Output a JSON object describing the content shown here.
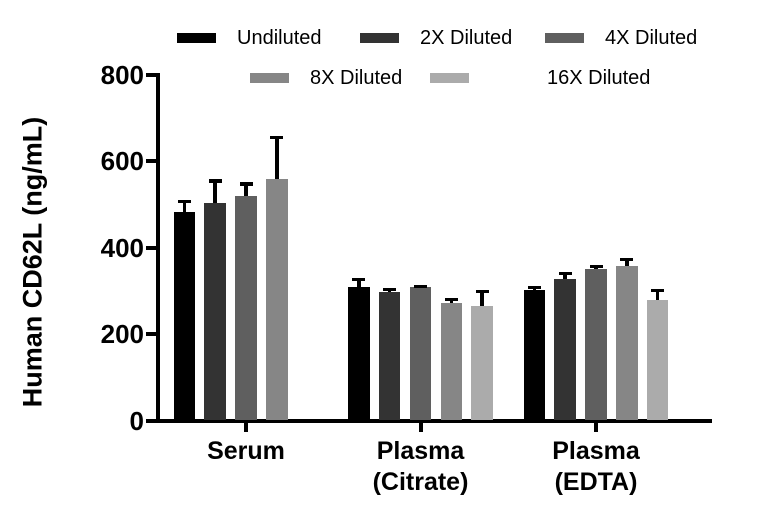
{
  "chart_data": {
    "type": "bar",
    "title": "",
    "ylabel": "Human CD62L (ng/mL)",
    "xlabel": "",
    "ylim": [
      0,
      800
    ],
    "yticks": [
      0,
      200,
      400,
      600,
      800
    ],
    "grid": false,
    "legend_position": "top",
    "error_bars": "upper SD, black",
    "categories": [
      "Serum",
      "Plasma\n(Citrate)",
      "Plasma\n(EDTA)"
    ],
    "series": [
      {
        "name": "Undiluted",
        "color": "#000000",
        "values": [
          483,
          310,
          303
        ],
        "errors": [
          26,
          18,
          7
        ]
      },
      {
        "name": "2X Diluted",
        "color": "#333333",
        "values": [
          504,
          298,
          328
        ],
        "errors": [
          53,
          7,
          14
        ]
      },
      {
        "name": "4X Diluted",
        "color": "#5f5f5f",
        "values": [
          520,
          308,
          351
        ],
        "errors": [
          30,
          4,
          7
        ]
      },
      {
        "name": "8X Diluted",
        "color": "#868686",
        "values": [
          560,
          271,
          358
        ],
        "errors": [
          97,
          11,
          17
        ]
      },
      {
        "name": "16X Diluted",
        "color": "#ababab",
        "values": [
          null,
          264,
          280
        ],
        "errors": [
          null,
          37,
          23
        ]
      }
    ]
  }
}
